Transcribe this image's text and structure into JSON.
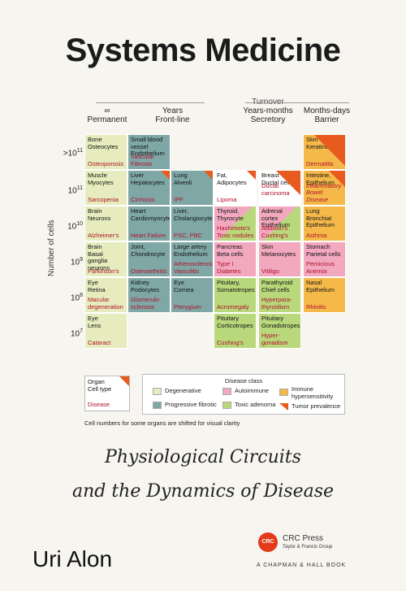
{
  "title": "Systems Medicine",
  "turnover": "Turnover",
  "columns": [
    {
      "symbol": "∞",
      "label": "Permanent"
    },
    {
      "symbol": "Years",
      "label": "Front-line"
    },
    {
      "symbol": "Years-months",
      "label": "Secretory"
    },
    {
      "symbol": "Months-days",
      "label": "Barrier"
    }
  ],
  "y_axis": "Number of cells",
  "rows": [
    ">10",
    "10",
    "10",
    "10",
    "10",
    "10"
  ],
  "row_exponents": [
    "11",
    "11",
    "10",
    "9",
    "8",
    "7"
  ],
  "cells": {
    "r0c0": {
      "organ": "Bone\nOsteocytes",
      "disease": "Osteoporosis"
    },
    "r0c1": {
      "organ": "Small blood vessel\nEndothelium",
      "disease": "Vascular Fibrosis"
    },
    "r0c5": {
      "organ": "Skin\nKeratinocytes",
      "disease": "Dermatitis"
    },
    "r1c0": {
      "organ": "Muscle\nMyocytes",
      "disease": "Sarcopenia"
    },
    "r1c1": {
      "organ": "Liver\nHepatocytes",
      "disease": "Cirrhosis"
    },
    "r1c2": {
      "organ": "Lung\nAlveoli",
      "disease": "IPF"
    },
    "r1c3": {
      "organ": "Fat,\nAdipocytes",
      "disease": "Lipoma"
    },
    "r1c4": {
      "organ": "Breast\nDuctal cells",
      "disease": "Ductal carcinoma"
    },
    "r1c5": {
      "organ": "Intestine,\nEpithelium",
      "disease": "Inflammatory Bowel Disease"
    },
    "r2c0": {
      "organ": "Brain\nNeurons",
      "disease": "Alzheimer's"
    },
    "r2c1": {
      "organ": "Heart\nCardiomyocytes",
      "disease": "Heart Failure"
    },
    "r2c2": {
      "organ": "Liver,\nCholangiocyte",
      "disease": "PSC, PBC"
    },
    "r2c3": {
      "organ": "Thyroid,\nThyrocyte",
      "disease": "Hashimoto's\nToxic nodules"
    },
    "r2c4": {
      "organ": "Adrenal cortex\nEpithelium",
      "disease": "Addison's\nCushing's"
    },
    "r2c5": {
      "organ": "Lung\nBronchial\nEpithelium",
      "disease": "Asthma"
    },
    "r3c0": {
      "organ": "Brain\nBasal ganglia\nneurons",
      "disease": "Parkinson's"
    },
    "r3c1": {
      "organ": "Joint,\nChondrocyte",
      "disease": "Osteoarthritis"
    },
    "r3c2": {
      "organ": "Large artery\nEndothelium",
      "disease": "Atherosclerosis\nVasculitis"
    },
    "r3c3": {
      "organ": "Pancreas\nBeta cells",
      "disease": "Type I Diabetes"
    },
    "r3c4": {
      "organ": "Skin\nMelanocytes",
      "disease": "Vitiligo"
    },
    "r3c5": {
      "organ": "Stomach\nParietal cells",
      "disease": "Pernicious\nAnemia"
    },
    "r4c0": {
      "organ": "Eye\nRetina",
      "disease": "Macular\ndegeneration"
    },
    "r4c1": {
      "organ": "Kidney\nPodocytes",
      "disease": "Glomerulo-\nsclerosis"
    },
    "r4c2": {
      "organ": "Eye\nCornea",
      "disease": "Pterygium"
    },
    "r4c3": {
      "organ": "Pituitary,\nSomatotropes",
      "disease": "Acromegaly"
    },
    "r4c4": {
      "organ": "Parathyroid\nChief cells",
      "disease": "Hyperpara-\nthyroidism"
    },
    "r4c5": {
      "organ": "Nasal\nEpithelium",
      "disease": "Rhinitis"
    },
    "r5c0": {
      "organ": "Eye\nLens",
      "disease": "Cataract"
    },
    "r5c3": {
      "organ": "Pituitary\nCorticotropes",
      "disease": "Cushing's"
    },
    "r5c4": {
      "organ": "Pituitary\nGonadotropes",
      "disease": "Hyper-\ngonadism"
    }
  },
  "legend_key": {
    "organ": "Organ",
    "cell_type": "Cell type",
    "disease": "Disease"
  },
  "legend": {
    "title": "Disease class",
    "items": [
      "Degenerative",
      "Progressive fibrotic",
      "Autoimmune",
      "Toxic adenoma",
      "Immune hypersensitivity",
      "Tumor prevalence"
    ],
    "colors": {
      "degenerative": "#e6ecbd",
      "fibrotic": "#7fa7a6",
      "autoimmune": "#f2a9c0",
      "toxic": "#b9d87c",
      "immune": "#f5b94a",
      "tumor": "#e85a1e"
    }
  },
  "footnote": "Cell numbers for some organs are shifted for visual clarity",
  "subtitle_line1": "Physiological Circuits",
  "subtitle_line2": "and the Dynamics of Disease",
  "author": "Uri Alon",
  "publisher": {
    "logo": "CRC",
    "name": "CRC Press",
    "sub": "Taylor & Francis Group",
    "imprint": "A CHAPMAN & HALL BOOK"
  }
}
